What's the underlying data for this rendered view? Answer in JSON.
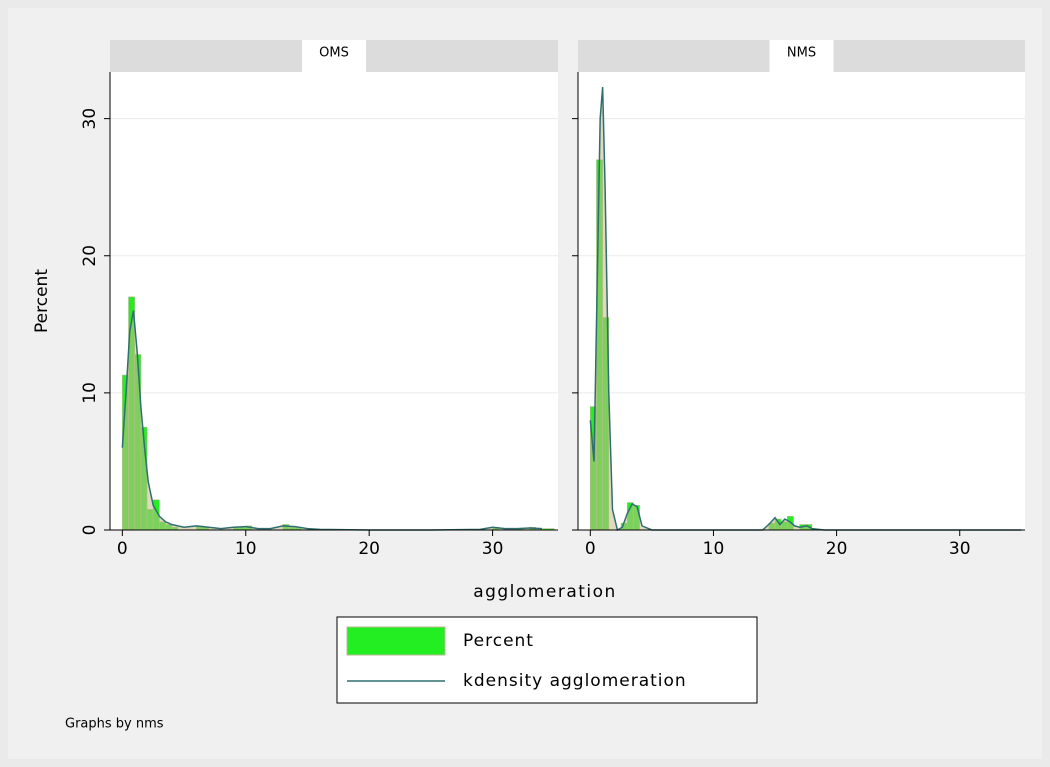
{
  "axis_titles": {
    "y": "Percent",
    "x": "agglomeration"
  },
  "note": "Graphs by nms",
  "chart_data": [
    {
      "type": "histogram",
      "title": "OMS",
      "xlim": [
        -1,
        35.3
      ],
      "ylim": [
        0,
        33.4
      ],
      "xticks": [
        0,
        10,
        20,
        30
      ],
      "yticks": [
        0,
        10,
        20,
        30
      ],
      "grid": true,
      "series": [
        {
          "name": "Percent",
          "color": "#22ee22",
          "bins": [
            0,
            0.5,
            1,
            1.5,
            2,
            2.5,
            3,
            3.5,
            4,
            4.5,
            5,
            5.5,
            6,
            6.5,
            7,
            7.5,
            8,
            8.5,
            9,
            9.5,
            10,
            10.5,
            11,
            11.5,
            12,
            12.5,
            13,
            13.5,
            14,
            14.5,
            15,
            15.5,
            16,
            16.5,
            17,
            17.5,
            18,
            18.5,
            19,
            19.5,
            20,
            20.5,
            21,
            21.5,
            22,
            22.5,
            23,
            23.5,
            24,
            24.5,
            25,
            25.5,
            26,
            26.5,
            27,
            27.5,
            28,
            28.5,
            29,
            29.5,
            30,
            30.5,
            31,
            31.5,
            32,
            32.5,
            33,
            33.5,
            34,
            34.5,
            35
          ],
          "values": [
            11.3,
            17,
            12.8,
            7.5,
            1.5,
            2.2,
            0.6,
            0.4,
            0.2,
            0,
            0,
            0,
            0.3,
            0.2,
            0,
            0,
            0,
            0,
            0.2,
            0.2,
            0.3,
            0,
            0,
            0,
            0,
            0,
            0.4,
            0.2,
            0.2,
            0,
            0,
            0,
            0,
            0,
            0,
            0,
            0,
            0,
            0,
            0,
            0,
            0,
            0,
            0,
            0,
            0,
            0,
            0,
            0,
            0,
            0,
            0,
            0,
            0,
            0,
            0,
            0,
            0,
            0,
            0,
            0.2,
            0,
            0,
            0,
            0.1,
            0,
            0.2,
            0,
            0.1,
            0.1
          ]
        },
        {
          "name": "kdensity agglomeration",
          "color": "#2f6f6f",
          "x": [
            0,
            0.3,
            0.6,
            0.9,
            1.2,
            1.5,
            1.8,
            2.1,
            2.5,
            3,
            3.5,
            4,
            5,
            6,
            7,
            8,
            9,
            10,
            11,
            12,
            13,
            14,
            15,
            16,
            20,
            25,
            29,
            30,
            31,
            32,
            33,
            34
          ],
          "values": [
            6,
            10,
            14.5,
            16,
            13,
            9,
            6,
            3.5,
            1.8,
            1,
            0.6,
            0.4,
            0.2,
            0.3,
            0.2,
            0.1,
            0.2,
            0.25,
            0.1,
            0.1,
            0.3,
            0.25,
            0.1,
            0.05,
            0,
            0,
            0.05,
            0.2,
            0.1,
            0.1,
            0.15,
            0.1
          ]
        }
      ]
    },
    {
      "type": "histogram",
      "title": "NMS",
      "xlim": [
        -1,
        35.3
      ],
      "ylim": [
        0,
        33.4
      ],
      "xticks": [
        0,
        10,
        20,
        30
      ],
      "yticks": [
        0,
        10,
        20,
        30
      ],
      "grid": true,
      "series": [
        {
          "color": "#22ee22",
          "bins": [
            0,
            0.5,
            1,
            1.5,
            2,
            2.5,
            3,
            3.5,
            4,
            4.5,
            5,
            5.5,
            6,
            6.5,
            7,
            7.5,
            8,
            8.5,
            9,
            9.5,
            10,
            10.5,
            11,
            11.5,
            12,
            12.5,
            13,
            13.5,
            14,
            14.5,
            15,
            15.5,
            16,
            16.5,
            17,
            17.5,
            18,
            18.5,
            19,
            19.5,
            20,
            20.5,
            21,
            21.5,
            22,
            22.5,
            23,
            23.5,
            24,
            24.5,
            25,
            25.5,
            26,
            26.5,
            27,
            27.5,
            28,
            28.5,
            29,
            29.5,
            30,
            30.5,
            31,
            31.5,
            32,
            32.5,
            33,
            33.5,
            34,
            34.5,
            35
          ],
          "values": [
            9,
            27,
            15.5,
            0,
            0,
            0.5,
            2,
            1.8,
            0,
            0,
            0,
            0,
            0,
            0,
            0,
            0,
            0,
            0,
            0,
            0,
            0,
            0,
            0,
            0,
            0,
            0,
            0,
            0,
            0,
            0.5,
            0.8,
            0.6,
            1,
            0,
            0.4,
            0.4,
            0,
            0,
            0,
            0,
            0,
            0,
            0,
            0,
            0,
            0,
            0,
            0,
            0,
            0,
            0,
            0,
            0,
            0,
            0,
            0,
            0,
            0,
            0,
            0,
            0,
            0,
            0,
            0,
            0,
            0,
            0,
            0,
            0,
            0
          ]
        },
        {
          "color": "#2f6f6f",
          "x": [
            0,
            0.3,
            0.6,
            0.8,
            1,
            1.2,
            1.5,
            1.8,
            2.2,
            2.6,
            3,
            3.4,
            3.8,
            4.2,
            5,
            10,
            14,
            14.6,
            15,
            15.4,
            15.8,
            16.2,
            16.6,
            17,
            17.6,
            18,
            19,
            25,
            35
          ],
          "values": [
            8,
            5,
            20,
            30,
            32.3,
            25,
            10,
            1.5,
            0,
            0.2,
            1.2,
            1.9,
            1.7,
            0.3,
            0,
            0,
            0,
            0.5,
            0.9,
            0.4,
            0.8,
            0.6,
            0.3,
            0.2,
            0.3,
            0.1,
            0,
            0,
            0
          ]
        }
      ]
    }
  ]
}
